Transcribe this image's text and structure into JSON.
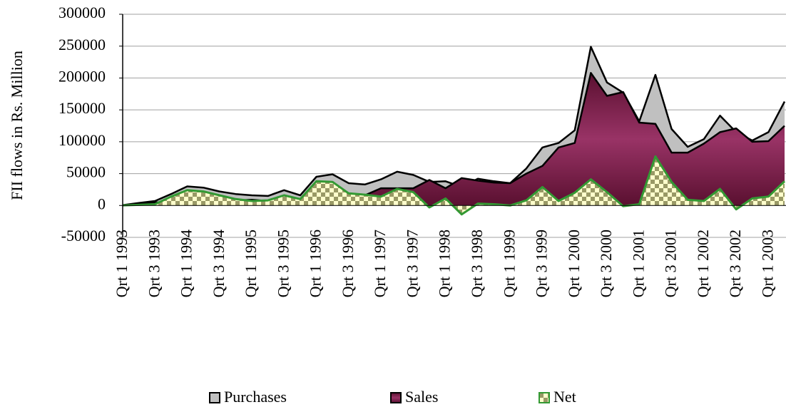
{
  "chart_data": {
    "type": "area",
    "y_label": "FII flows in Rs. Million",
    "categories": [
      "Qrt 1 1993",
      null,
      "Qrt 3 1993",
      null,
      "Qrt 1 1994",
      null,
      "Qrt 3 1994",
      null,
      "Qrt 1 1995",
      null,
      "Qrt 3 1995",
      null,
      "Qrt 1 1996",
      null,
      "Qrt 3 1996",
      null,
      "Qrt 1 1997",
      null,
      "Qrt 3 1997",
      null,
      "Qrt 1 1998",
      null,
      "Qrt 3 1998",
      null,
      "Qrt 1 1999",
      null,
      "Qrt 3 1999",
      null,
      "Qrt 1 2000",
      null,
      "Qrt 3 2000",
      null,
      "Qrt 1 2001",
      null,
      "Qrt 3 2001",
      null,
      "Qrt 1 2002",
      null,
      "Qrt 3 2002",
      null,
      "Qrt 1 2003",
      null
    ],
    "series": [
      {
        "name": "Purchases",
        "color": "#c0c0c0",
        "values": [
          500,
          4000,
          7000,
          18000,
          30000,
          28000,
          22000,
          18000,
          16000,
          15000,
          24000,
          16000,
          45000,
          49000,
          35000,
          33000,
          41000,
          53000,
          48000,
          37000,
          38000,
          29000,
          42000,
          38000,
          35000,
          58000,
          91000,
          98000,
          118000,
          249000,
          193000,
          177000,
          132000,
          205000,
          120000,
          92000,
          104000,
          141000,
          115000,
          102000,
          115000,
          163000
        ]
      },
      {
        "name": "Sales",
        "color": "#993366",
        "values": [
          300,
          3000,
          5000,
          4000,
          6000,
          6000,
          6000,
          8000,
          9000,
          7000,
          8000,
          6000,
          7000,
          12000,
          16000,
          16000,
          27000,
          27000,
          27000,
          40000,
          27000,
          43000,
          39000,
          36000,
          35000,
          50000,
          62000,
          91000,
          98000,
          208000,
          172000,
          178000,
          130000,
          128000,
          83000,
          83000,
          97000,
          115000,
          121000,
          100000,
          101000,
          125000
        ]
      },
      {
        "name": "Net",
        "color": "#339933",
        "values": [
          200,
          1000,
          2000,
          14000,
          24000,
          22000,
          16000,
          10000,
          7000,
          8000,
          16000,
          10000,
          38000,
          37000,
          19000,
          17000,
          14000,
          26000,
          21000,
          -3000,
          11000,
          -14000,
          3000,
          2000,
          0,
          8000,
          29000,
          7000,
          20000,
          41000,
          21000,
          -1000,
          2000,
          77000,
          37000,
          9000,
          7000,
          26000,
          -6000,
          11000,
          14000,
          38000
        ]
      }
    ],
    "ylim": [
      -50000,
      300000
    ],
    "yticks": [
      -50000,
      0,
      50000,
      100000,
      150000,
      200000,
      250000,
      300000
    ],
    "grid": true
  }
}
